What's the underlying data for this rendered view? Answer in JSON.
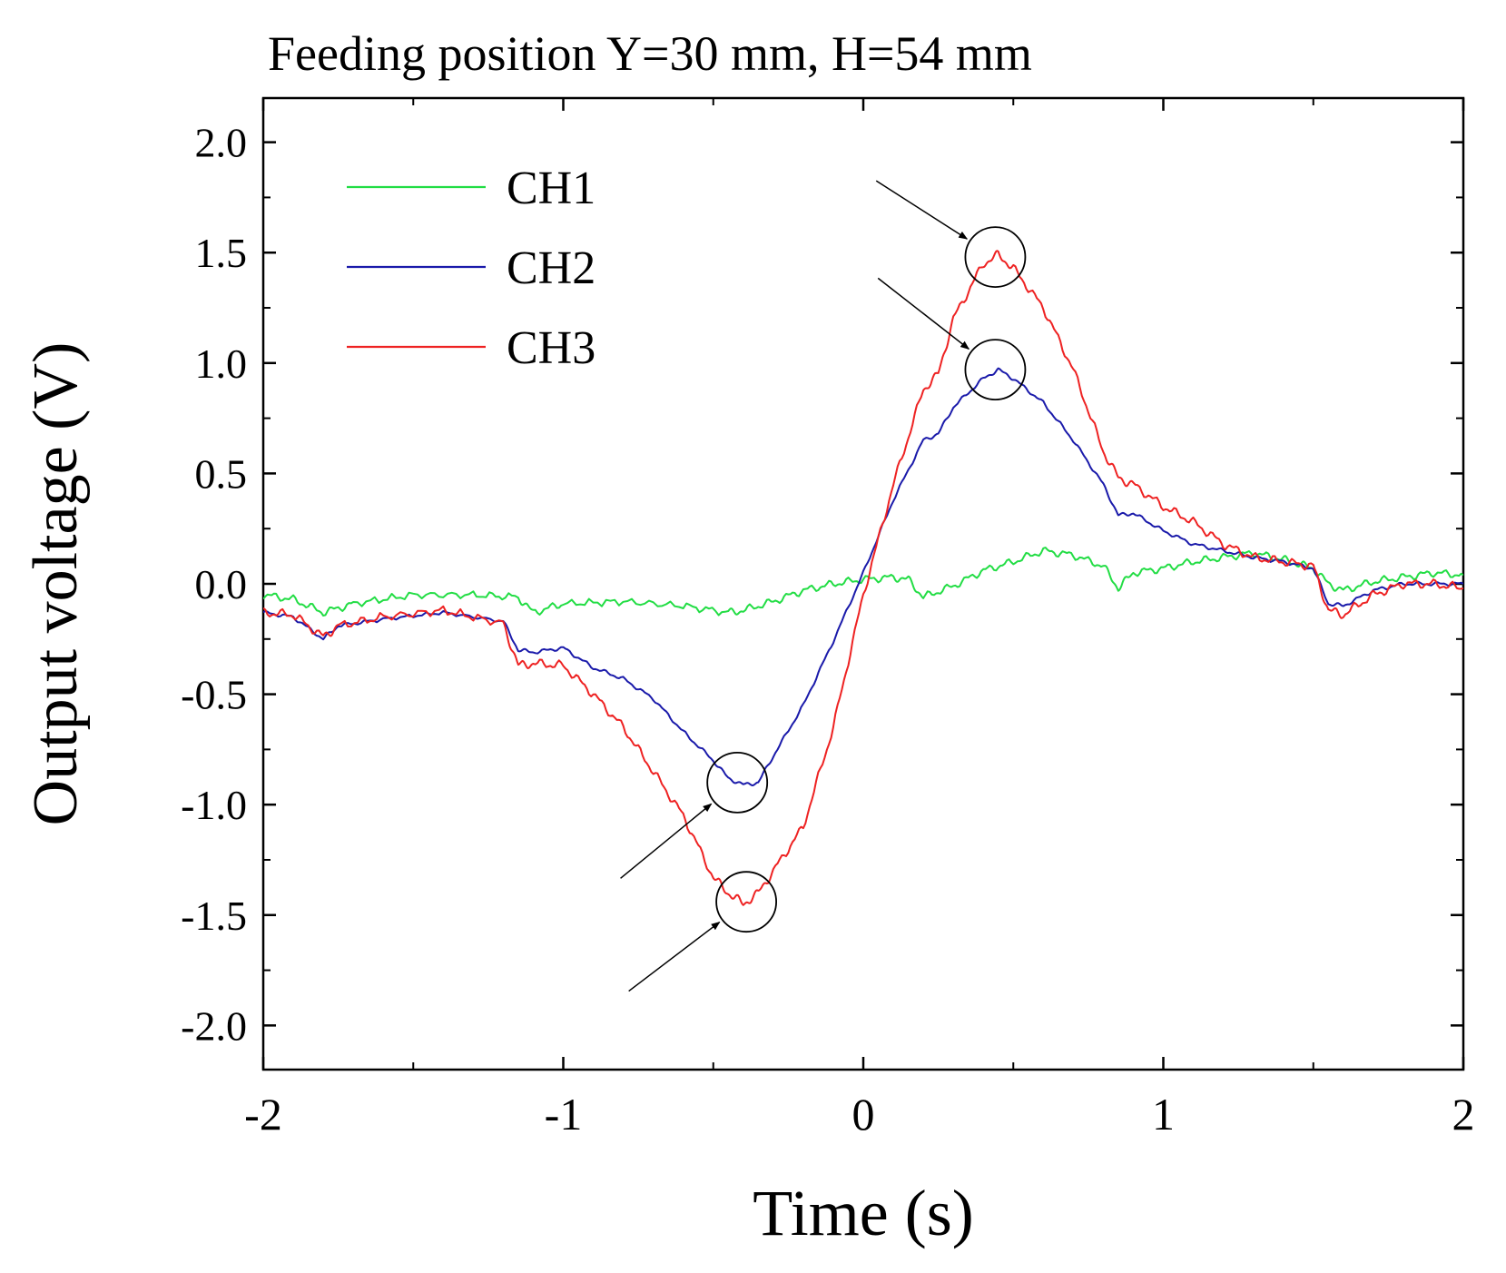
{
  "chart_data": {
    "type": "line",
    "title": "Feeding position Y=30 mm, H=54 mm",
    "xlabel": "Time (s)",
    "ylabel": "Output voltage (V)",
    "xlim": [
      -2,
      2
    ],
    "ylim": [
      -2.2,
      2.2
    ],
    "xticks": [
      -2,
      -1,
      0,
      1,
      2
    ],
    "xtick_labels": [
      "-2",
      "-1",
      "0",
      "1",
      "2"
    ],
    "yticks": [
      2.0,
      1.5,
      1.0,
      0.5,
      0.0,
      -0.5,
      -1.0,
      -1.5,
      -2.0
    ],
    "ytick_labels": [
      "2.0",
      "1.5",
      "1.0",
      "0.5",
      "0.0",
      "-0.5",
      "-1.0",
      "-1.5",
      "-2.0"
    ],
    "grid": false,
    "legend_position": "top-left",
    "series": [
      {
        "name": "CH1",
        "color": "#22dd44",
        "x": [
          -2.0,
          -1.9,
          -1.8,
          -1.7,
          -1.5,
          -1.3,
          -1.15,
          -1.1,
          -1.0,
          -0.8,
          -0.6,
          -0.45,
          -0.4,
          -0.3,
          -0.2,
          -0.1,
          0.0,
          0.1,
          0.15,
          0.2,
          0.3,
          0.4,
          0.5,
          0.6,
          0.7,
          0.8,
          0.85,
          0.9,
          1.0,
          1.1,
          1.2,
          1.3,
          1.4,
          1.45,
          1.5,
          1.55,
          1.6,
          1.7,
          1.8,
          1.9,
          2.0
        ],
        "y": [
          -0.05,
          -0.07,
          -0.13,
          -0.09,
          -0.05,
          -0.05,
          -0.06,
          -0.13,
          -0.09,
          -0.08,
          -0.1,
          -0.13,
          -0.12,
          -0.08,
          -0.03,
          0.0,
          0.02,
          0.03,
          0.02,
          -0.06,
          -0.01,
          0.06,
          0.1,
          0.15,
          0.13,
          0.08,
          -0.02,
          0.05,
          0.07,
          0.1,
          0.12,
          0.14,
          0.11,
          0.09,
          0.07,
          0.0,
          -0.03,
          0.01,
          0.03,
          0.05,
          0.04
        ]
      },
      {
        "name": "CH2",
        "color": "#1a1aaa",
        "x": [
          -2.0,
          -1.9,
          -1.8,
          -1.75,
          -1.6,
          -1.4,
          -1.2,
          -1.15,
          -1.1,
          -1.0,
          -0.9,
          -0.8,
          -0.7,
          -0.6,
          -0.5,
          -0.45,
          -0.4,
          -0.35,
          -0.3,
          -0.2,
          -0.1,
          0.0,
          0.1,
          0.2,
          0.25,
          0.3,
          0.4,
          0.45,
          0.5,
          0.6,
          0.7,
          0.8,
          0.85,
          0.9,
          1.0,
          1.1,
          1.2,
          1.3,
          1.4,
          1.5,
          1.55,
          1.6,
          1.7,
          1.8,
          1.9,
          2.0
        ],
        "y": [
          -0.13,
          -0.15,
          -0.25,
          -0.19,
          -0.16,
          -0.13,
          -0.17,
          -0.3,
          -0.31,
          -0.29,
          -0.38,
          -0.43,
          -0.52,
          -0.67,
          -0.8,
          -0.88,
          -0.91,
          -0.9,
          -0.78,
          -0.55,
          -0.26,
          0.05,
          0.38,
          0.65,
          0.68,
          0.8,
          0.93,
          0.97,
          0.93,
          0.82,
          0.65,
          0.45,
          0.31,
          0.32,
          0.24,
          0.18,
          0.15,
          0.12,
          0.1,
          0.07,
          -0.09,
          -0.1,
          -0.03,
          0.0,
          0.0,
          0.0
        ]
      },
      {
        "name": "CH3",
        "color": "#ee2222",
        "x": [
          -2.0,
          -1.9,
          -1.8,
          -1.75,
          -1.6,
          -1.4,
          -1.2,
          -1.15,
          -1.1,
          -1.0,
          -0.9,
          -0.8,
          -0.7,
          -0.6,
          -0.5,
          -0.45,
          -0.4,
          -0.35,
          -0.3,
          -0.2,
          -0.1,
          0.0,
          0.1,
          0.2,
          0.25,
          0.3,
          0.4,
          0.45,
          0.5,
          0.6,
          0.7,
          0.8,
          0.85,
          0.9,
          1.0,
          1.1,
          1.2,
          1.3,
          1.4,
          1.5,
          1.55,
          1.6,
          1.7,
          1.8,
          1.9,
          2.0
        ],
        "y": [
          -0.13,
          -0.14,
          -0.24,
          -0.19,
          -0.15,
          -0.12,
          -0.18,
          -0.37,
          -0.36,
          -0.37,
          -0.5,
          -0.65,
          -0.85,
          -1.05,
          -1.33,
          -1.4,
          -1.45,
          -1.4,
          -1.3,
          -1.1,
          -0.65,
          -0.05,
          0.45,
          0.88,
          0.95,
          1.2,
          1.45,
          1.49,
          1.43,
          1.25,
          0.97,
          0.6,
          0.48,
          0.45,
          0.35,
          0.28,
          0.18,
          0.12,
          0.1,
          0.08,
          -0.12,
          -0.14,
          -0.05,
          0.0,
          0.0,
          -0.02
        ]
      }
    ],
    "annotations": [
      {
        "type": "circle",
        "target_series": "CH3",
        "x": 0.44,
        "y": 1.48
      },
      {
        "type": "circle",
        "target_series": "CH2",
        "x": 0.44,
        "y": 0.97
      },
      {
        "type": "circle",
        "target_series": "CH2",
        "x": -0.42,
        "y": -0.9
      },
      {
        "type": "circle",
        "target_series": "CH3",
        "x": -0.39,
        "y": -1.44
      }
    ]
  }
}
